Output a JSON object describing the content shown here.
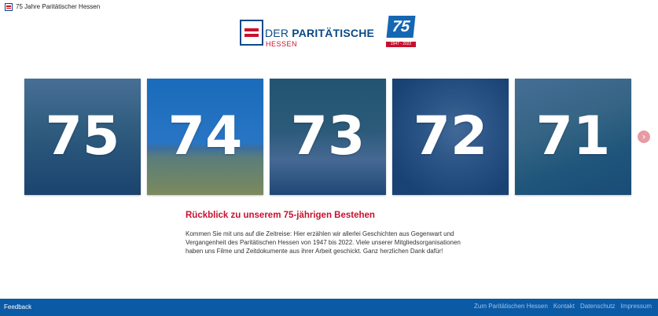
{
  "top_bar": {
    "title": "75 Jahre Paritätischer Hessen"
  },
  "brand": {
    "name_part1": "DER ",
    "name_part2": "PARITÄTISCHE",
    "region": "HESSEN",
    "badge_number": "75",
    "badge_years": "1947 - 2022"
  },
  "carousel": {
    "tiles": [
      {
        "number": "75"
      },
      {
        "number": "74"
      },
      {
        "number": "73"
      },
      {
        "number": "72"
      },
      {
        "number": "71"
      }
    ],
    "next_icon": "chevron-right-icon"
  },
  "intro": {
    "title": "Rückblick zu unserem 75-jährigen Bestehen",
    "text": "Kommen Sie mit uns auf die Zeitreise:  Hier erzählen wir allerlei Geschichten aus Gegenwart und Vergangenheit des Paritätischen Hessen von 1947 bis 2022. Viele unserer Mitgliedsorganisationen haben uns Filme und Zeitdokumente aus ihrer Arbeit geschickt. Ganz herzlichen Dank dafür!"
  },
  "footer": {
    "feedback": "Feedback",
    "links": [
      "Zum Paritätischen Hessen",
      "Kontakt",
      "Datenschutz",
      "Impressum"
    ]
  },
  "colors": {
    "primary_blue": "#0a5aa5",
    "accent_red": "#c8102e"
  }
}
